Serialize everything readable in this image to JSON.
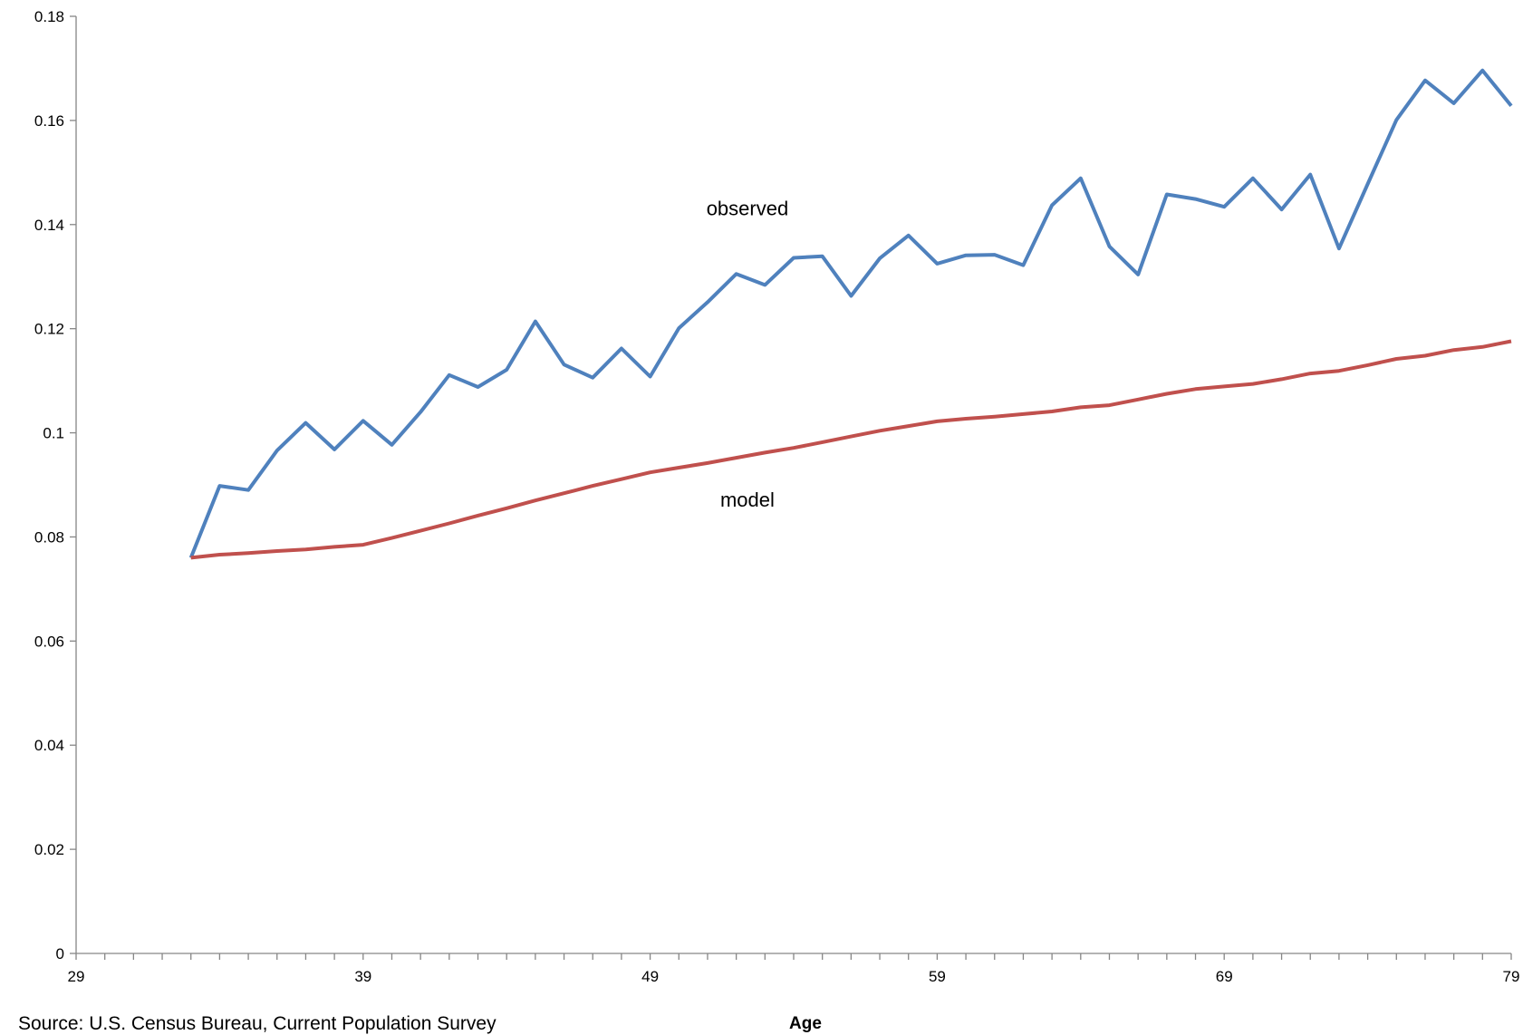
{
  "chart_data": {
    "type": "line",
    "title": "",
    "xlabel": "Age",
    "ylabel": "",
    "xlim": [
      29,
      79
    ],
    "ylim": [
      0,
      0.18
    ],
    "x_tick_labels": [
      "29",
      "39",
      "49",
      "59",
      "69",
      "79"
    ],
    "y_tick_labels": [
      "0",
      "0.02",
      "0.04",
      "0.06",
      "0.08",
      "0.1",
      "0.12",
      "0.14",
      "0.16",
      "0.18"
    ],
    "grid": false,
    "legend": "none",
    "x": [
      33,
      34,
      35,
      36,
      37,
      38,
      39,
      40,
      41,
      42,
      43,
      44,
      45,
      46,
      47,
      48,
      49,
      50,
      51,
      52,
      53,
      54,
      55,
      56,
      57,
      58,
      59,
      60,
      61,
      62,
      63,
      64,
      65,
      66,
      67,
      68,
      69,
      70,
      71,
      72,
      73,
      74,
      75,
      76,
      77,
      78,
      79
    ],
    "series": [
      {
        "name": "observed",
        "color": "#4f81bd",
        "values": [
          0.076,
          0.0898,
          0.089,
          0.0966,
          0.1019,
          0.0968,
          0.1023,
          0.0977,
          0.104,
          0.1111,
          0.1088,
          0.1121,
          0.1214,
          0.1131,
          0.1106,
          0.1162,
          0.1108,
          0.1201,
          0.1251,
          0.1305,
          0.1284,
          0.1336,
          0.1339,
          0.1263,
          0.1335,
          0.1379,
          0.1325,
          0.1341,
          0.1342,
          0.1322,
          0.1437,
          0.1489,
          0.1358,
          0.1304,
          0.1458,
          0.1449,
          0.1434,
          0.1489,
          0.1429,
          0.1496,
          0.1354,
          0.1478,
          0.1601,
          0.1677,
          0.1633,
          0.1696,
          0.1628
        ]
      },
      {
        "name": "model",
        "color": "#c0504d",
        "values": [
          0.076,
          0.0766,
          0.0769,
          0.0773,
          0.0776,
          0.0781,
          0.0785,
          0.0798,
          0.0812,
          0.0826,
          0.0841,
          0.0855,
          0.087,
          0.0884,
          0.0898,
          0.0911,
          0.0924,
          0.0933,
          0.0942,
          0.0952,
          0.0962,
          0.0971,
          0.0982,
          0.0993,
          0.1004,
          0.1013,
          0.1022,
          0.1027,
          0.1031,
          0.1036,
          0.1041,
          0.1049,
          0.1053,
          0.1064,
          0.1075,
          0.1084,
          0.1089,
          0.1094,
          0.1103,
          0.1114,
          0.1119,
          0.113,
          0.1142,
          0.1148,
          0.1159,
          0.1165,
          0.1176
        ]
      }
    ],
    "annotations": [
      {
        "text": "observed",
        "x": 51,
        "y": 0.143
      },
      {
        "text": "model",
        "x": 51,
        "y": 0.087
      }
    ],
    "source_note": "Source: U.S. Census Bureau, Current Population Survey"
  }
}
